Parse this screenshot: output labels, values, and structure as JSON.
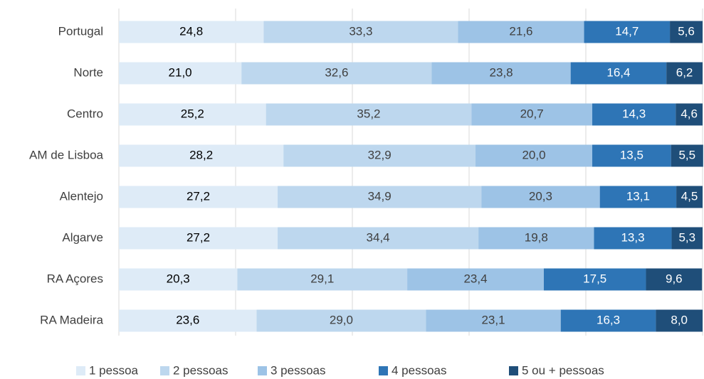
{
  "chart_data": {
    "type": "stacked-barh",
    "categories": [
      "Portugal",
      "Norte",
      "Centro",
      "AM de Lisboa",
      "Alentejo",
      "Algarve",
      "RA Açores",
      "RA Madeira"
    ],
    "xlim": [
      0,
      100
    ],
    "xticks": [
      0,
      20,
      40,
      60,
      80,
      100
    ],
    "grid": true,
    "legend": "bottom",
    "series": [
      {
        "name": "1 pessoa",
        "color": "#deebf7",
        "label_color": "#000000",
        "values": [
          24.8,
          21.0,
          25.2,
          28.2,
          27.2,
          27.2,
          20.3,
          23.6
        ],
        "value_labels": [
          "24,8",
          "21,0",
          "25,2",
          "28,2",
          "27,2",
          "27,2",
          "20,3",
          "23,6"
        ]
      },
      {
        "name": "2 pessoas",
        "color": "#bdd7ee",
        "label_color": "#404040",
        "values": [
          33.3,
          32.6,
          35.2,
          32.9,
          34.9,
          34.4,
          29.1,
          29.0
        ],
        "value_labels": [
          "33,3",
          "32,6",
          "35,2",
          "32,9",
          "34,9",
          "34,4",
          "29,1",
          "29,0"
        ]
      },
      {
        "name": "3 pessoas",
        "color": "#9dc3e6",
        "label_color": "#404040",
        "values": [
          21.6,
          23.8,
          20.7,
          20.0,
          20.3,
          19.8,
          23.4,
          23.1
        ],
        "value_labels": [
          "21,6",
          "23,8",
          "20,7",
          "20,0",
          "20,3",
          "19,8",
          "23,4",
          "23,1"
        ]
      },
      {
        "name": "4 pessoas",
        "color": "#2e75b6",
        "label_color": "#ffffff",
        "values": [
          14.7,
          16.4,
          14.3,
          13.5,
          13.1,
          13.3,
          17.5,
          16.3
        ],
        "value_labels": [
          "14,7",
          "16,4",
          "14,3",
          "13,5",
          "13,1",
          "13,3",
          "17,5",
          "16,3"
        ]
      },
      {
        "name": "5 ou + pessoas",
        "color": "#1f4e79",
        "label_color": "#ffffff",
        "values": [
          5.6,
          6.2,
          4.6,
          5.5,
          4.5,
          5.3,
          9.6,
          8.0
        ],
        "value_labels": [
          "5,6",
          "6,2",
          "4,6",
          "5,5",
          "4,5",
          "5,3",
          "9,6",
          "8,0"
        ]
      }
    ]
  }
}
